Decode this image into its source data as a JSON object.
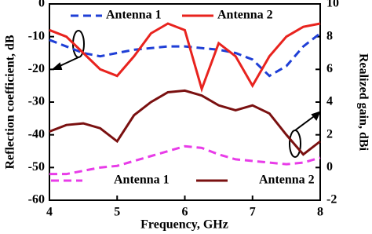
{
  "chart_data": {
    "type": "line",
    "xlabel": "Frequency, GHz",
    "ylabel": "Reflection coefficient, dB",
    "y2label": "Realized gain, dBi",
    "x": [
      4,
      4.25,
      4.5,
      4.75,
      5,
      5.25,
      5.5,
      5.75,
      6,
      6.25,
      6.5,
      6.75,
      7,
      7.25,
      7.5,
      7.75,
      8
    ],
    "xlim": [
      4,
      8
    ],
    "xticks": [
      4,
      5,
      6,
      7,
      8
    ],
    "ylim": [
      -60,
      0
    ],
    "yticks": [
      0,
      -10,
      -20,
      -30,
      -40,
      -50,
      -60
    ],
    "y2lim": [
      -2,
      10
    ],
    "y2ticks": [
      10,
      8,
      6,
      4,
      2,
      0,
      -2
    ],
    "series": [
      {
        "name": "Antenna 1",
        "color": "#1f3fd6",
        "dash": true,
        "axis": "y",
        "values": [
          -11,
          -13,
          -15,
          -16,
          -15,
          -14,
          -13.5,
          -13,
          -13,
          -13.5,
          -14,
          -15,
          -17,
          -22,
          -19,
          -13,
          -9
        ]
      },
      {
        "name": "Antenna 2",
        "color": "#e8231e",
        "dash": false,
        "axis": "y",
        "values": [
          -8,
          -10,
          -15,
          -20,
          -22,
          -16,
          -9,
          -6,
          -8,
          -26,
          -12,
          -16,
          -25,
          -16,
          -10,
          -7,
          -6
        ]
      },
      {
        "name": "Antenna 1",
        "color": "#e83ce8",
        "dash": true,
        "axis": "y2",
        "values": [
          -0.4,
          -0.4,
          -0.2,
          0,
          0.1,
          0.4,
          0.7,
          1.0,
          1.3,
          1.2,
          0.8,
          0.5,
          0.4,
          0.3,
          0.2,
          0.3,
          0.6
        ]
      },
      {
        "name": "Antenna 2",
        "color": "#7a1010",
        "dash": false,
        "axis": "y2",
        "values": [
          2.2,
          2.6,
          2.7,
          2.4,
          1.6,
          3.2,
          4.0,
          4.6,
          4.7,
          4.4,
          3.8,
          3.5,
          3.8,
          3.3,
          2.0,
          0.8,
          1.6
        ]
      }
    ]
  }
}
